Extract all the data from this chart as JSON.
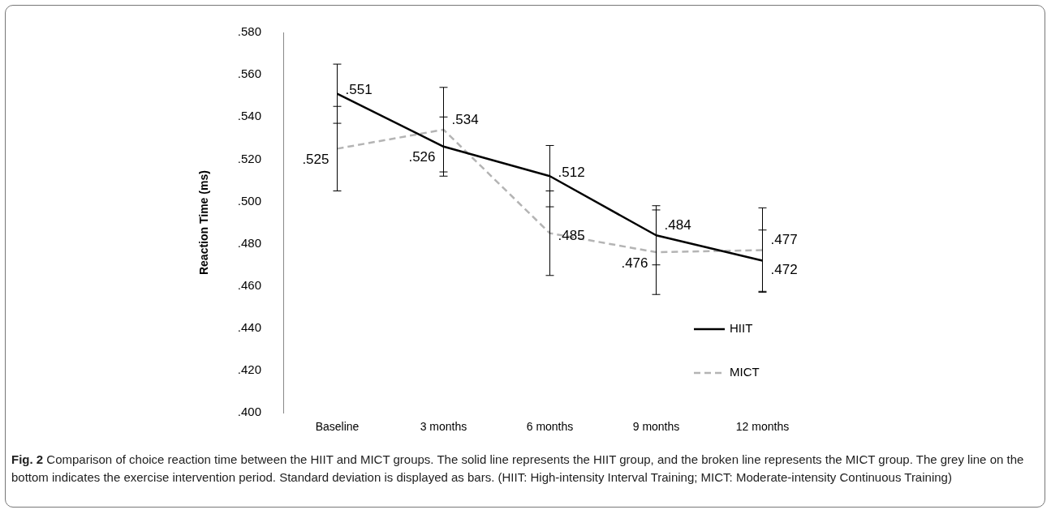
{
  "chart_data": {
    "type": "line",
    "ylabel": "Reaction Time (ms)",
    "categories": [
      "Baseline",
      "3 months",
      "6 months",
      "9 months",
      "12 months"
    ],
    "series": [
      {
        "name": "HIIT",
        "color": "#000000",
        "line_style": "solid",
        "values": [
          0.551,
          0.526,
          0.512,
          0.484,
          0.472
        ],
        "errors": [
          0.014,
          0.014,
          0.0145,
          0.014,
          0.0145
        ],
        "value_labels": [
          ".551",
          ".526",
          ".512",
          ".484",
          ".472"
        ]
      },
      {
        "name": "MICT",
        "color": "#b4b4b4",
        "line_style": "dashed",
        "values": [
          0.525,
          0.534,
          0.485,
          0.476,
          0.477
        ],
        "errors": [
          0.02,
          0.02,
          0.02,
          0.02,
          0.02
        ],
        "value_labels": [
          ".525",
          ".534",
          ".485",
          ".476",
          ".477"
        ]
      }
    ],
    "ylim": [
      0.4,
      0.58
    ],
    "yticks": [
      {
        "value": 0.4,
        "label": ".400"
      },
      {
        "value": 0.42,
        "label": ".420"
      },
      {
        "value": 0.44,
        "label": ".440"
      },
      {
        "value": 0.46,
        "label": ".460"
      },
      {
        "value": 0.48,
        "label": ".480"
      },
      {
        "value": 0.5,
        "label": ".500"
      },
      {
        "value": 0.52,
        "label": ".520"
      },
      {
        "value": 0.54,
        "label": ".540"
      },
      {
        "value": 0.56,
        "label": ".560"
      },
      {
        "value": 0.58,
        "label": ".580"
      }
    ],
    "grid": false,
    "legend": "right",
    "marker": "none",
    "annotations": [
      "Fig. 2",
      "Comparison of choice reaction time between the HIIT and MICT groups. The solid line represents the HIIT group, and the broken line represents the MICT group. The grey line on the bottom indicates the exercise intervention period. Standard deviation is displayed as bars. (HIIT: High-intensity Interval Training; MICT: Moderate-intensity Continuous Training)"
    ]
  }
}
